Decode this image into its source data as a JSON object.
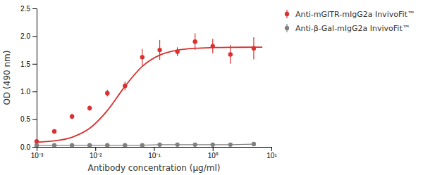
{
  "chart_data": {
    "type": "scatter",
    "xlabel": "Antibody concentration (µg/ml)",
    "ylabel": "OD (490 nm)",
    "log": "x",
    "xlim": [
      0.001,
      10
    ],
    "xticks": [
      {
        "value": 0.001,
        "label": "10⁻³"
      },
      {
        "value": 0.01,
        "label": "10⁻²"
      },
      {
        "value": 0.1,
        "label": "10⁻¹"
      },
      {
        "value": 1,
        "label": "10⁰"
      },
      {
        "value": 10,
        "label": "10¹"
      }
    ],
    "ylim": [
      0.0,
      2.5
    ],
    "yticks": [
      {
        "value": 0.0,
        "label": "0.0"
      },
      0.5,
      {
        "value": 1.0,
        "label": "1.0"
      },
      1.5,
      {
        "value": 2.0,
        "label": "2.0"
      },
      2.5
    ],
    "grid": false,
    "legend": "right",
    "series": [
      {
        "name": "Anti-mGITR-mIgG2a InvivoFit™",
        "type": "scatter",
        "marker": "circle",
        "color": "#d93030",
        "x": [
          0.001,
          0.002,
          0.004,
          0.008,
          0.016,
          0.032,
          0.063,
          0.125,
          0.25,
          0.5,
          1.0,
          2.0,
          5.0
        ],
        "values": [
          0.1,
          0.28,
          0.55,
          0.7,
          0.97,
          1.1,
          1.62,
          1.75,
          1.72,
          1.9,
          1.82,
          1.67,
          1.78
        ],
        "errors": [
          0.03,
          0.04,
          0.05,
          0.05,
          0.06,
          0.08,
          0.15,
          0.18,
          0.08,
          0.15,
          0.13,
          0.17,
          0.2
        ]
      },
      {
        "name": "Anti-β-Gal-mIgG2a InvivoFit™",
        "type": "line",
        "marker": "circle",
        "color": "#808080",
        "x": [
          0.001,
          0.002,
          0.004,
          0.008,
          0.016,
          0.032,
          0.063,
          0.125,
          0.25,
          0.5,
          1.0,
          2.0,
          5.0
        ],
        "values": [
          0.03,
          0.03,
          0.03,
          0.03,
          0.03,
          0.03,
          0.03,
          0.04,
          0.04,
          0.04,
          0.04,
          0.04,
          0.05
        ],
        "errors": [
          0.01,
          0.01,
          0.01,
          0.01,
          0.01,
          0.01,
          0.01,
          0.01,
          0.01,
          0.01,
          0.01,
          0.01,
          0.01
        ]
      },
      {
        "type": "line",
        "marker": "none",
        "color": "#d93030",
        "x": [
          0.001,
          0.002,
          0.004,
          0.008,
          0.016,
          0.032,
          0.063,
          0.125,
          0.25,
          0.5,
          1.0,
          2.0,
          5.0,
          7.0
        ],
        "values": [
          0.0837,
          0.1083,
          0.1741,
          0.3352,
          0.6558,
          1.0933,
          1.454,
          1.658,
          1.747,
          1.7809,
          1.7932,
          1.7976,
          1.7994,
          1.7996
        ]
      }
    ]
  }
}
